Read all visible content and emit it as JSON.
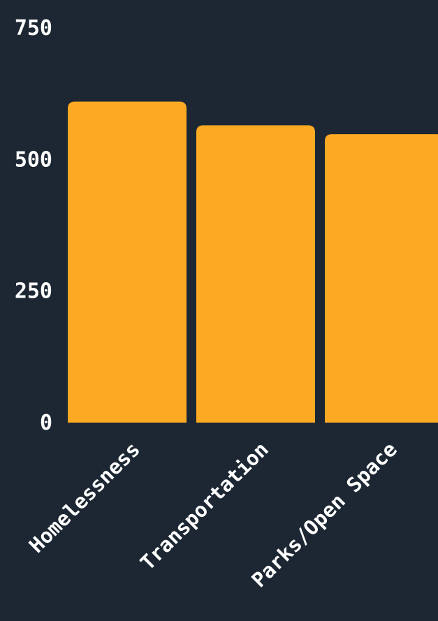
{
  "chart_data": {
    "type": "bar",
    "categories": [
      "Homelessness",
      "Transportation",
      "Parks/Open Space"
    ],
    "values": [
      610,
      565,
      548
    ],
    "y_ticks": [
      "0",
      "250",
      "500",
      "750"
    ],
    "ylim": [
      0,
      750
    ],
    "grid": false,
    "legend": "none",
    "colors": {
      "background": "#1c2733",
      "bar": "#fca923",
      "text": "#ffffff"
    }
  }
}
